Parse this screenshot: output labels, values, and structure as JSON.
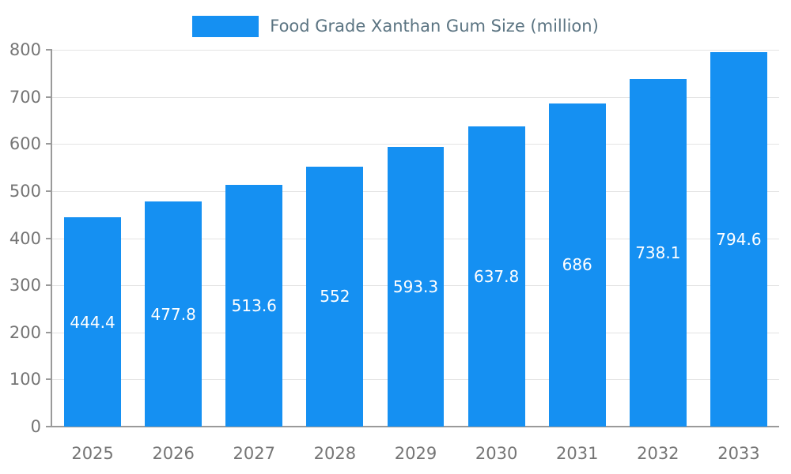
{
  "legend": {
    "label": "Food Grade Xanthan Gum Size (million)"
  },
  "chart_data": {
    "type": "bar",
    "title": "Food Grade Xanthan Gum Size (million)",
    "categories": [
      "2025",
      "2026",
      "2027",
      "2028",
      "2029",
      "2030",
      "2031",
      "2032",
      "2033"
    ],
    "values": [
      444.4,
      477.8,
      513.6,
      552,
      593.3,
      637.8,
      686,
      738.1,
      794.6
    ],
    "value_labels": [
      "444.4",
      "477.8",
      "513.6",
      "552",
      "593.3",
      "637.8",
      "686",
      "738.1",
      "794.6"
    ],
    "ytick_labels": [
      "0",
      "100",
      "200",
      "300",
      "400",
      "500",
      "600",
      "700",
      "800"
    ],
    "ylim": [
      0,
      800
    ],
    "ytick_interval": 100,
    "grid": true,
    "legend_position": "top",
    "xlabel": "",
    "ylabel": "",
    "colors": {
      "bar": "#1590f2",
      "bar_label": "#ffffff",
      "tick_text": "#757575",
      "legend_text": "#5b7482",
      "gridline": "#e3e3e3",
      "axis_line": "#9a9a9a",
      "background": "#ffffff"
    }
  }
}
